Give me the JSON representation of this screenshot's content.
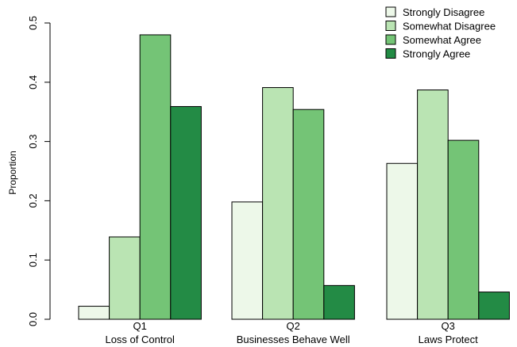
{
  "chart_data": {
    "type": "bar",
    "title": "",
    "xlabel": "",
    "ylabel": "Proportion",
    "ylim": [
      0,
      0.5
    ],
    "yticks": [
      "0.0",
      "0.1",
      "0.2",
      "0.3",
      "0.4",
      "0.5"
    ],
    "grid": false,
    "legend_position": "top-right",
    "categories": [
      {
        "code": "Q1",
        "name": "Loss of Control"
      },
      {
        "code": "Q2",
        "name": "Businesses Behave Well"
      },
      {
        "code": "Q3",
        "name": "Laws Protect"
      }
    ],
    "series": [
      {
        "name": "Strongly Disagree",
        "color": "#edf8e9",
        "values": [
          0.022,
          0.198,
          0.263
        ]
      },
      {
        "name": "Somewhat Disagree",
        "color": "#bae4b3",
        "values": [
          0.139,
          0.391,
          0.387
        ]
      },
      {
        "name": "Somewhat Agree",
        "color": "#74c476",
        "values": [
          0.48,
          0.354,
          0.302
        ]
      },
      {
        "name": "Strongly Agree",
        "color": "#238b45",
        "values": [
          0.359,
          0.057,
          0.046
        ]
      }
    ]
  }
}
